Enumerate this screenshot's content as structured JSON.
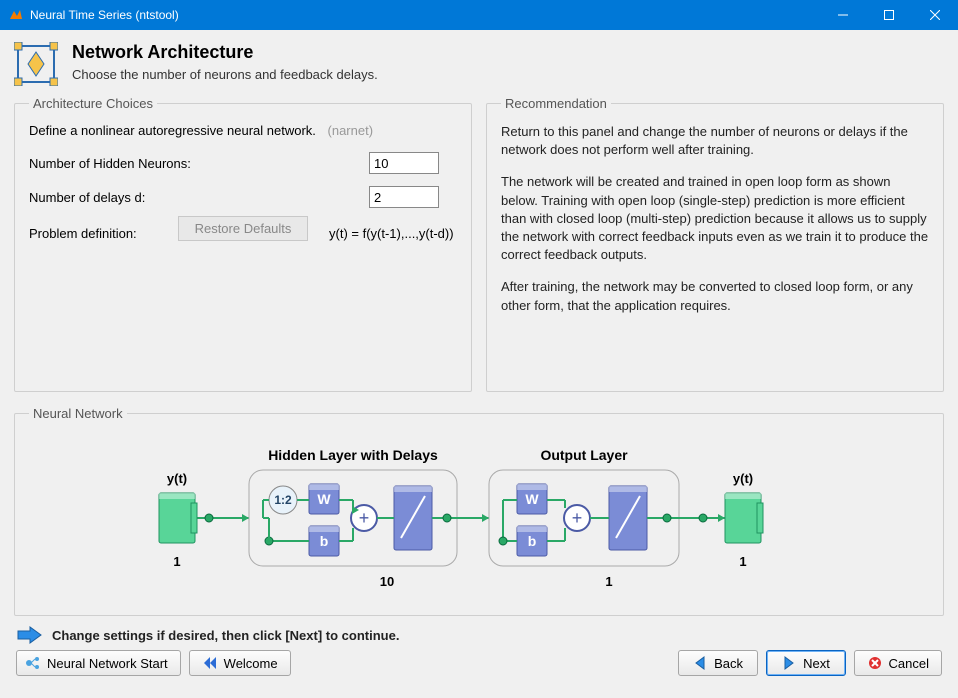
{
  "window": {
    "title": "Neural Time Series (ntstool)",
    "accent_color": "#0078d7"
  },
  "header": {
    "title": "Network Architecture",
    "subtitle": "Choose the number of neurons and feedback delays."
  },
  "architecture": {
    "legend": "Architecture Choices",
    "description": "Define a nonlinear autoregressive neural network.",
    "description_hint": "(narnet)",
    "rows": {
      "hidden_neurons": {
        "label": "Number of Hidden Neurons:",
        "value": "10"
      },
      "delays": {
        "label": "Number of delays d:",
        "value": "2"
      }
    },
    "problem": {
      "label": "Problem definition:",
      "equation": "y(t) = f(y(t-1),...,y(t-d))"
    },
    "restore_label": "Restore Defaults"
  },
  "recommendation": {
    "legend": "Recommendation",
    "para1": "Return to this panel and change the number of neurons or delays if the network does not perform well after training.",
    "para2": "The network will be created and trained in open loop form as shown below.  Training with open loop (single-step) prediction is more efficient than with closed loop (multi-step) prediction because it allows us to supply the network with correct feedback inputs even as we train it to produce the correct feedback outputs.",
    "para3": "After training, the network may be converted to closed loop form, or any other form, that the application requires."
  },
  "neural_network": {
    "legend": "Neural Network",
    "diagram": {
      "input_label": "y(t)",
      "input_size": "1",
      "hidden_title": "Hidden Layer with Delays",
      "hidden_delay": "1:2",
      "hidden_w": "W",
      "hidden_b": "b",
      "hidden_size": "10",
      "output_title": "Output Layer",
      "output_w": "W",
      "output_b": "b",
      "output_size": "1",
      "output_label": "y(t)",
      "colors": {
        "green_block": "#58d598",
        "green_block_stroke": "#1f9360",
        "blue_block": "#7b8cd6",
        "blue_block_stroke": "#4b5aa5",
        "line": "#2aa866",
        "group_stroke": "#aaaaaa",
        "circle_fill": "#e8f2fa",
        "plus_fill": "#ffffff"
      }
    }
  },
  "hint": "Change settings  if desired, then click [Next] to continue.",
  "buttons": {
    "nn_start": "Neural Network Start",
    "welcome": "Welcome",
    "back": "Back",
    "next": "Next",
    "cancel": "Cancel"
  }
}
